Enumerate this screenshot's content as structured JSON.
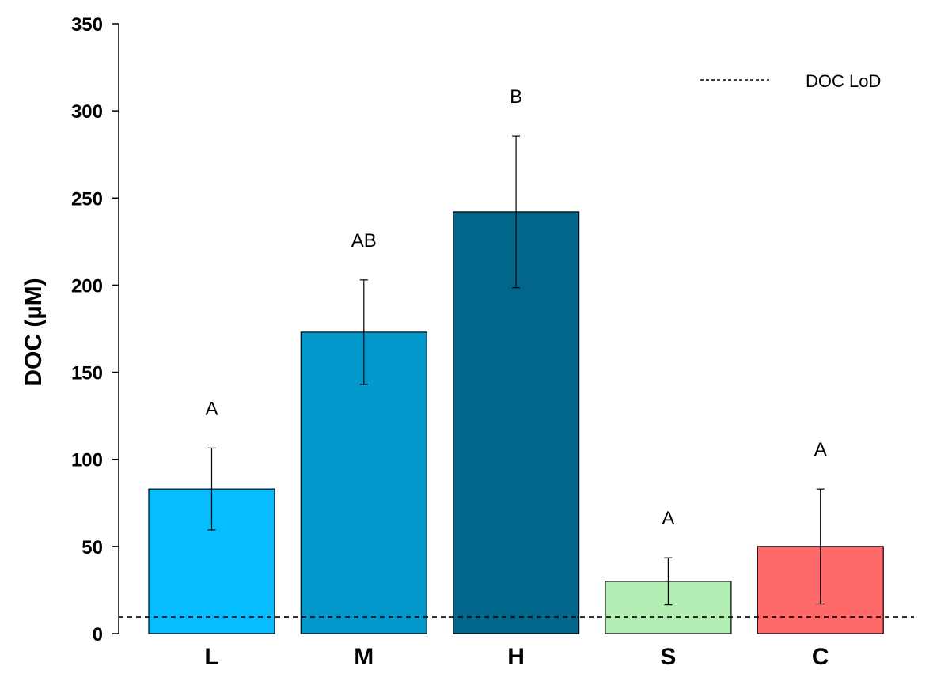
{
  "chart_data": {
    "type": "bar",
    "categories": [
      "L",
      "M",
      "H",
      "S",
      "C"
    ],
    "values": [
      83,
      173,
      242,
      30,
      50
    ],
    "errors": [
      23.5,
      30,
      43.5,
      13.5,
      33
    ],
    "significance_letters": [
      "A",
      "AB",
      "B",
      "A",
      "A"
    ],
    "colors": [
      "#05bdff",
      "#0399cc",
      "#02678a",
      "#b4eeb4",
      "#ff6969"
    ],
    "ylabel": "DOC (µM)",
    "ylim": [
      0,
      350
    ],
    "yticks": [
      0,
      50,
      100,
      150,
      200,
      250,
      300,
      350
    ],
    "reference_line": {
      "value": 9.5,
      "label": "DOC LoD",
      "style": "dashed"
    },
    "legend_position": "top-right",
    "grid": false
  }
}
